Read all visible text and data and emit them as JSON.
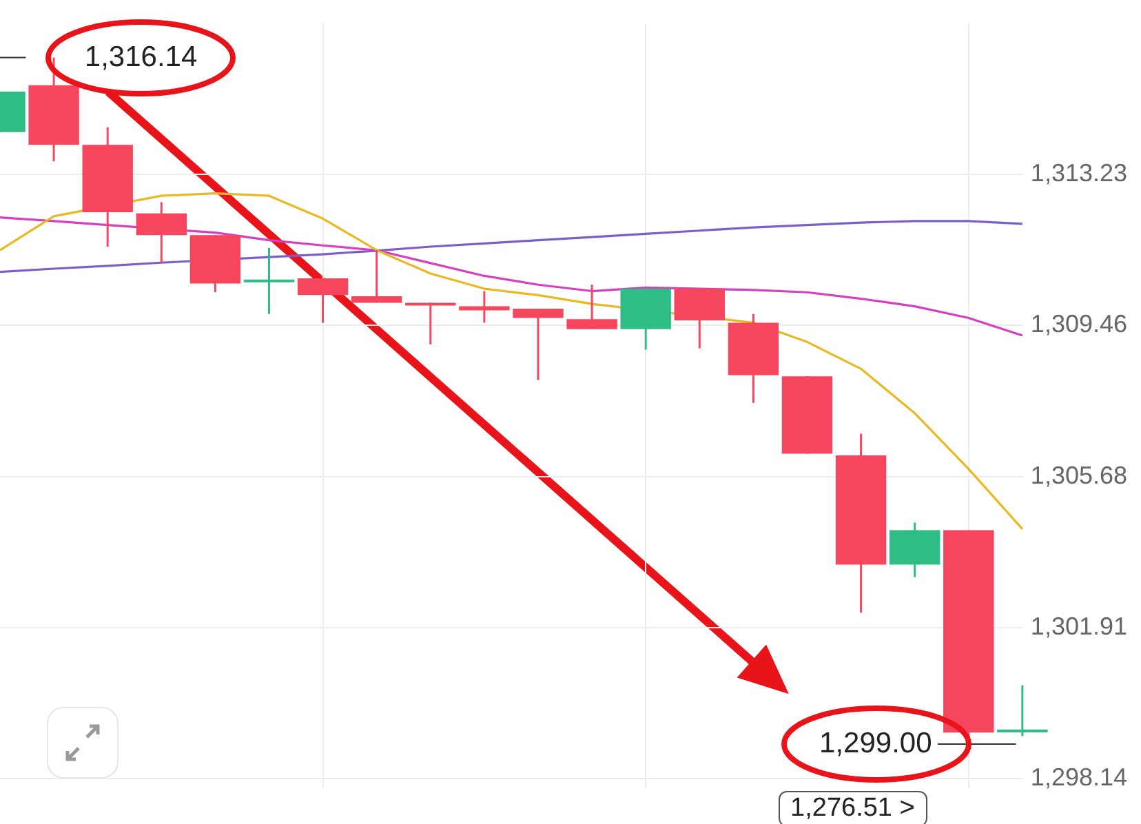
{
  "chart_data": {
    "type": "candlestick",
    "categories": [
      null,
      null,
      null,
      null,
      null,
      null,
      null,
      null,
      null,
      null,
      null,
      null,
      null,
      null,
      null,
      null,
      null,
      null,
      null,
      null
    ],
    "ohlc": [
      [
        1314.28,
        1315.29,
        1314.28,
        1315.29
      ],
      [
        1315.45,
        1316.14,
        1313.55,
        1313.96
      ],
      [
        1313.96,
        1314.4,
        1311.42,
        1312.28
      ],
      [
        1312.25,
        1312.53,
        1311.01,
        1311.71
      ],
      [
        1311.71,
        1311.71,
        1310.28,
        1310.5
      ],
      [
        1310.56,
        1311.39,
        1309.74,
        1310.6
      ],
      [
        1310.63,
        1310.63,
        1309.52,
        1310.21
      ],
      [
        1310.18,
        1311.33,
        1310.02,
        1310.02
      ],
      [
        1310.02,
        1310.02,
        1308.98,
        1309.96
      ],
      [
        1309.93,
        1310.31,
        1309.52,
        1309.83
      ],
      [
        1309.87,
        1309.87,
        1308.09,
        1309.64
      ],
      [
        1309.61,
        1310.47,
        1309.36,
        1309.36
      ],
      [
        1309.36,
        1310.37,
        1308.85,
        1310.37
      ],
      [
        1310.37,
        1310.37,
        1308.88,
        1309.58
      ],
      [
        1309.52,
        1309.74,
        1307.52,
        1308.21
      ],
      [
        1308.18,
        1308.18,
        1306.25,
        1306.25
      ],
      [
        1306.21,
        1306.75,
        1302.28,
        1303.48
      ],
      [
        1303.48,
        1304.53,
        1303.17,
        1304.34
      ],
      [
        1304.34,
        1304.34,
        1299.0,
        1299.29
      ],
      [
        1299.32,
        1300.47,
        1299.2,
        1299.36
      ]
    ],
    "colors": [
      "#2ebd85",
      "#f6465d",
      "#f6465d",
      "#f6465d",
      "#f6465d",
      "#2ebd85",
      "#f6465d",
      "#f6465d",
      "#f6465d",
      "#f6465d",
      "#f6465d",
      "#f6465d",
      "#2ebd85",
      "#f6465d",
      "#f6465d",
      "#f6465d",
      "#f6465d",
      "#2ebd85",
      "#f6465d",
      "#2ebd85"
    ],
    "series": [
      {
        "type": "line",
        "color": "#e8b923",
        "values": [
          1311.33,
          1312.18,
          null,
          1312.69,
          1312.75,
          1312.69,
          1312.12,
          1311.33,
          1310.75,
          1310.37,
          1310.21,
          1309.99,
          null,
          null,
          1309.52,
          1309.04,
          1308.37,
          1307.26,
          1305.87,
          1304.37
        ]
      },
      {
        "type": "line",
        "color": "#d440c0",
        "values": [
          1312.15,
          1312.06,
          1311.96,
          null,
          1311.77,
          1311.58,
          1311.45,
          1311.33,
          1311.01,
          1310.69,
          1310.47,
          1310.31,
          1310.4,
          1310.37,
          1310.34,
          1310.28,
          1310.12,
          1309.93,
          1309.64,
          1309.2
        ]
      },
      {
        "type": "line",
        "color": "#7b5fc9",
        "values": [
          1310.79,
          1310.87,
          1310.94,
          1311.02,
          null,
          1311.16,
          1311.23,
          1311.32,
          1311.42,
          1311.5,
          1311.58,
          1311.66,
          1311.74,
          1311.82,
          1311.9,
          1311.96,
          1312.02,
          1312.06,
          1312.06,
          1311.99
        ]
      }
    ],
    "ylim": [
      1297.9,
      1317.0
    ],
    "yticks": [
      {
        "value": 1298.14,
        "label": "1,298.14"
      },
      {
        "value": 1301.91,
        "label": "1,301.91"
      },
      {
        "value": 1305.68,
        "label": "1,305.68"
      },
      {
        "value": 1309.46,
        "label": "1,309.46"
      },
      {
        "value": 1313.23,
        "label": "1,313.23"
      }
    ],
    "annotations": [
      "1,316.14",
      "1,299.00",
      "1,276.51 >"
    ],
    "grid": true,
    "legend": false,
    "marker": "none",
    "line_style": "solid",
    "tick_labels": "y"
  }
}
